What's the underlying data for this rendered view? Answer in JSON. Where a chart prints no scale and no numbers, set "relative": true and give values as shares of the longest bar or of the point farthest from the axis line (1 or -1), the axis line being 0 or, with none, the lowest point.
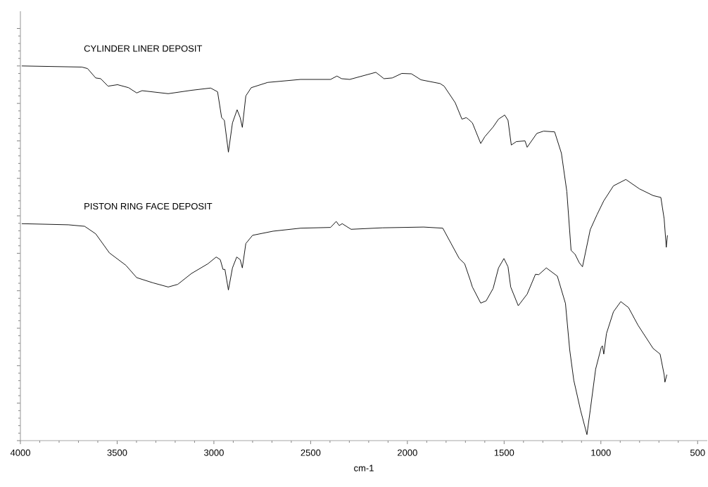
{
  "chart_data": {
    "type": "line",
    "xlabel": "cm-1",
    "relative": true,
    "tick_labels": "x",
    "marker": "none",
    "line_style": "solid",
    "xlim": [
      4000,
      450
    ],
    "xticks": [
      4000,
      3500,
      3000,
      2500,
      2000,
      1500,
      1000,
      500
    ],
    "series": [
      {
        "name": "CYLINDER LINER DEPOSIT",
        "color": "#000000",
        "x": [
          3993,
          3682,
          3653,
          3611,
          3585,
          3547,
          3498,
          3441,
          3399,
          3371,
          3236,
          3116,
          3017,
          2981,
          2960,
          2946,
          2925,
          2904,
          2880,
          2864,
          2853,
          2835,
          2807,
          2722,
          2552,
          2397,
          2364,
          2340,
          2298,
          2163,
          2121,
          2078,
          2029,
          1979,
          1930,
          1831,
          1810,
          1753,
          1718,
          1696,
          1685,
          1664,
          1621,
          1600,
          1557,
          1529,
          1497,
          1480,
          1463,
          1437,
          1392,
          1381,
          1331,
          1296,
          1239,
          1204,
          1176,
          1154,
          1133,
          1112,
          1095,
          1055,
          1020,
          985,
          935,
          871,
          801,
          730,
          690,
          673,
          662,
          656
        ],
        "values": [
          1.0,
          0.997,
          0.993,
          0.968,
          0.966,
          0.946,
          0.95,
          0.942,
          0.928,
          0.934,
          0.926,
          0.935,
          0.941,
          0.931,
          0.862,
          0.855,
          0.77,
          0.848,
          0.883,
          0.862,
          0.836,
          0.92,
          0.942,
          0.956,
          0.964,
          0.964,
          0.973,
          0.966,
          0.964,
          0.983,
          0.966,
          0.968,
          0.98,
          0.979,
          0.963,
          0.953,
          0.946,
          0.902,
          0.858,
          0.862,
          0.858,
          0.848,
          0.793,
          0.811,
          0.837,
          0.858,
          0.869,
          0.855,
          0.789,
          0.798,
          0.8,
          0.783,
          0.82,
          0.826,
          0.824,
          0.767,
          0.665,
          0.508,
          0.497,
          0.475,
          0.464,
          0.563,
          0.603,
          0.64,
          0.68,
          0.697,
          0.672,
          0.654,
          0.649,
          0.592,
          0.516,
          0.548
        ]
      },
      {
        "name": "PISTON RING FACE DEPOSIT",
        "color": "#000000",
        "x": [
          3993,
          3752,
          3668,
          3611,
          3540,
          3455,
          3399,
          3314,
          3236,
          3187,
          3116,
          3031,
          2988,
          2967,
          2953,
          2943,
          2925,
          2904,
          2882,
          2864,
          2853,
          2835,
          2800,
          2694,
          2552,
          2397,
          2368,
          2352,
          2337,
          2291,
          2128,
          1916,
          1817,
          1774,
          1732,
          1704,
          1675,
          1664,
          1621,
          1593,
          1557,
          1529,
          1501,
          1480,
          1466,
          1427,
          1381,
          1338,
          1321,
          1282,
          1225,
          1183,
          1161,
          1140,
          1105,
          1072,
          1055,
          1027,
          998,
          992,
          985,
          971,
          935,
          897,
          857,
          808,
          730,
          694,
          673,
          669,
          659
        ],
        "values": [
          0.579,
          0.576,
          0.572,
          0.552,
          0.501,
          0.468,
          0.435,
          0.421,
          0.41,
          0.417,
          0.446,
          0.472,
          0.49,
          0.483,
          0.457,
          0.457,
          0.402,
          0.461,
          0.49,
          0.483,
          0.461,
          0.526,
          0.548,
          0.559,
          0.567,
          0.569,
          0.585,
          0.574,
          0.579,
          0.564,
          0.568,
          0.57,
          0.567,
          0.526,
          0.486,
          0.472,
          0.428,
          0.41,
          0.367,
          0.373,
          0.406,
          0.461,
          0.486,
          0.464,
          0.41,
          0.36,
          0.391,
          0.444,
          0.443,
          0.461,
          0.439,
          0.366,
          0.242,
          0.161,
          0.081,
          0.016,
          0.081,
          0.191,
          0.249,
          0.253,
          0.231,
          0.286,
          0.344,
          0.371,
          0.355,
          0.308,
          0.246,
          0.231,
          0.176,
          0.156,
          0.176
        ]
      }
    ]
  }
}
